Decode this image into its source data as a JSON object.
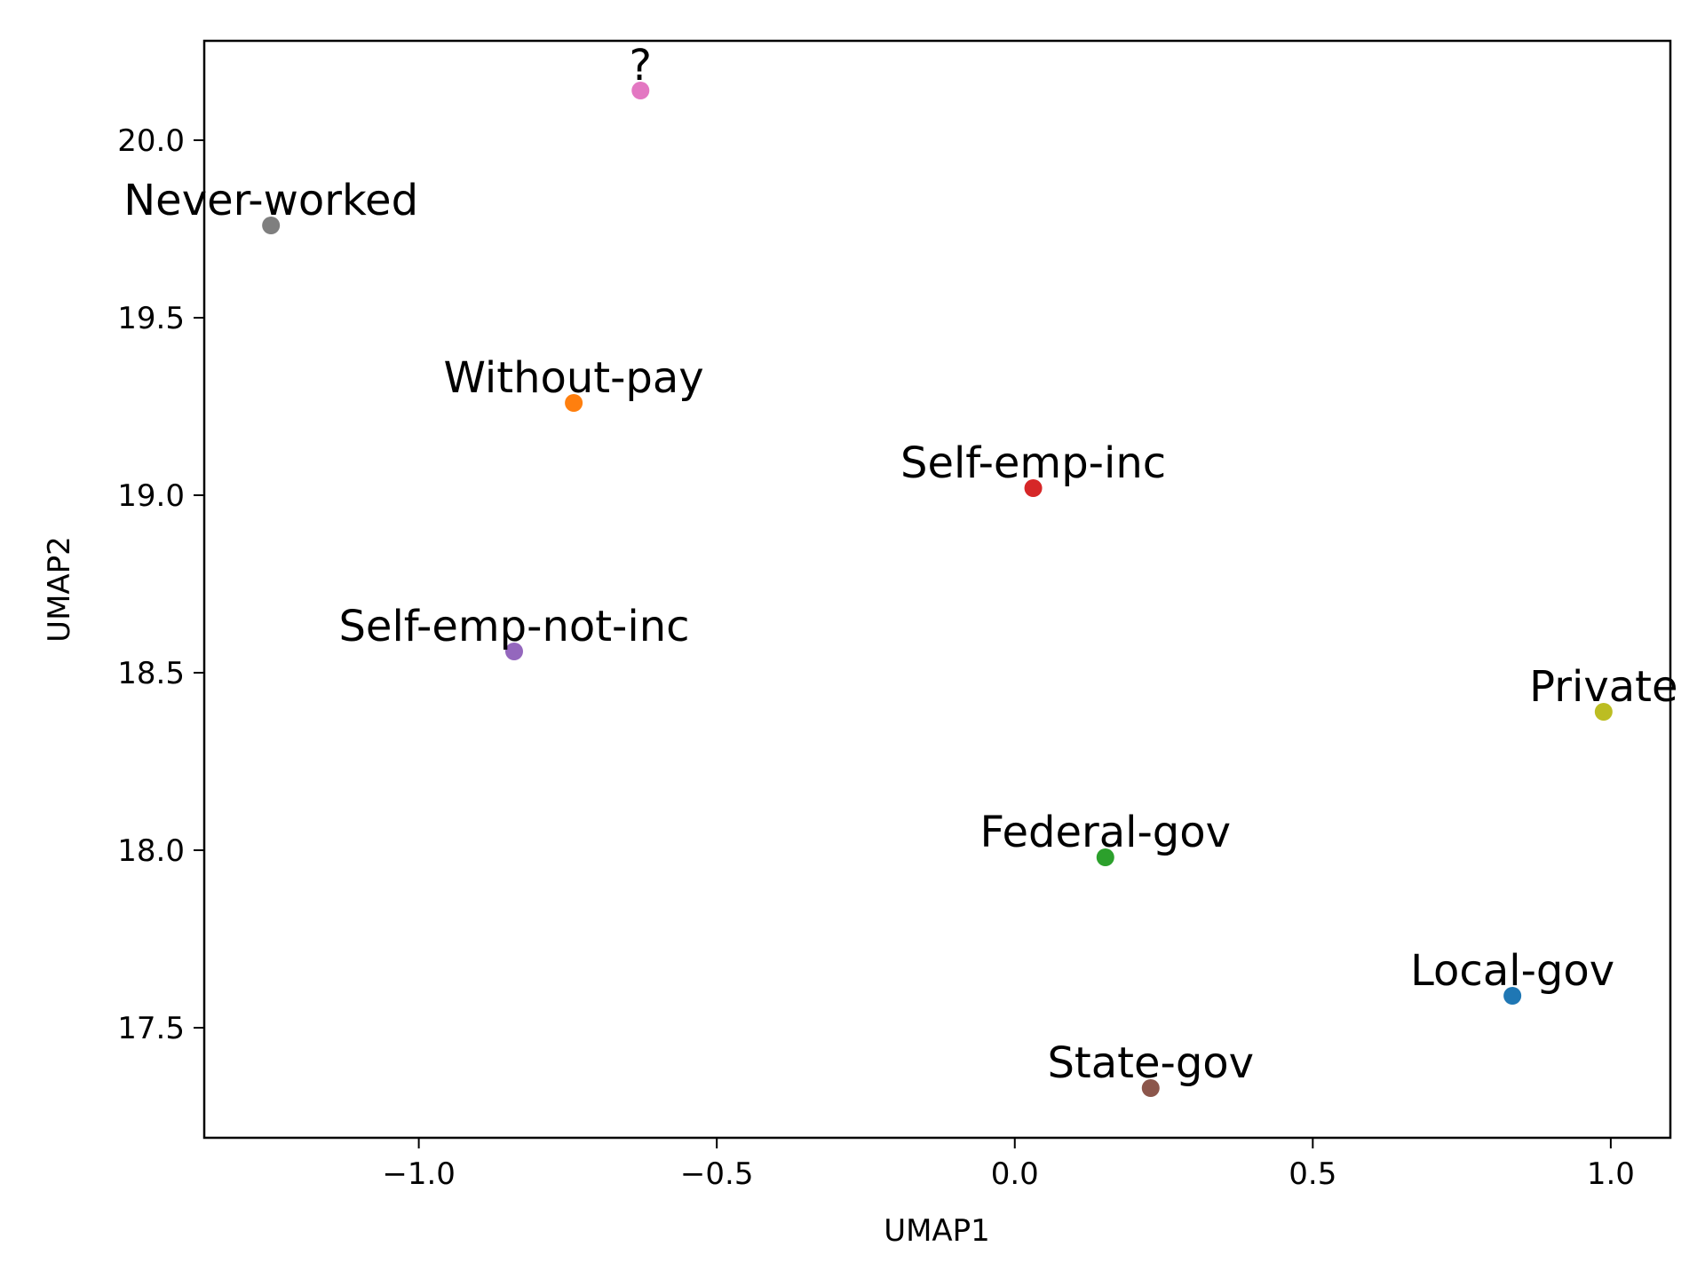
{
  "chart_data": {
    "type": "scatter",
    "title": "",
    "xlabel": "UMAP1",
    "ylabel": "UMAP2",
    "xlim": [
      -1.36,
      1.1
    ],
    "ylim": [
      17.19,
      20.28
    ],
    "xticks": [
      -1.0,
      -0.5,
      0.0,
      0.5,
      1.0
    ],
    "xtick_labels": [
      "−1.0",
      "−0.5",
      "0.0",
      "0.5",
      "1.0"
    ],
    "yticks": [
      17.5,
      18.0,
      18.5,
      19.0,
      19.5,
      20.0
    ],
    "ytick_labels": [
      "17.5",
      "18.0",
      "18.5",
      "19.0",
      "19.5",
      "20.0"
    ],
    "grid": false,
    "points": [
      {
        "label": "Local-gov",
        "x": 0.835,
        "y": 17.59,
        "color": "#1f77b4"
      },
      {
        "label": "Without-pay",
        "x": -0.74,
        "y": 19.26,
        "color": "#ff7f0e"
      },
      {
        "label": "Federal-gov",
        "x": 0.152,
        "y": 17.98,
        "color": "#2ca02c"
      },
      {
        "label": "Self-emp-inc",
        "x": 0.031,
        "y": 19.02,
        "color": "#d62728"
      },
      {
        "label": "Self-emp-not-inc",
        "x": -0.84,
        "y": 18.56,
        "color": "#9467bd"
      },
      {
        "label": "State-gov",
        "x": 0.228,
        "y": 17.33,
        "color": "#8c564b"
      },
      {
        "label": "?",
        "x": -0.628,
        "y": 20.14,
        "color": "#e377c2"
      },
      {
        "label": "Never-worked",
        "x": -1.248,
        "y": 19.76,
        "color": "#7f7f7f"
      },
      {
        "label": "Private",
        "x": 0.988,
        "y": 18.39,
        "color": "#bcbd22"
      }
    ]
  }
}
